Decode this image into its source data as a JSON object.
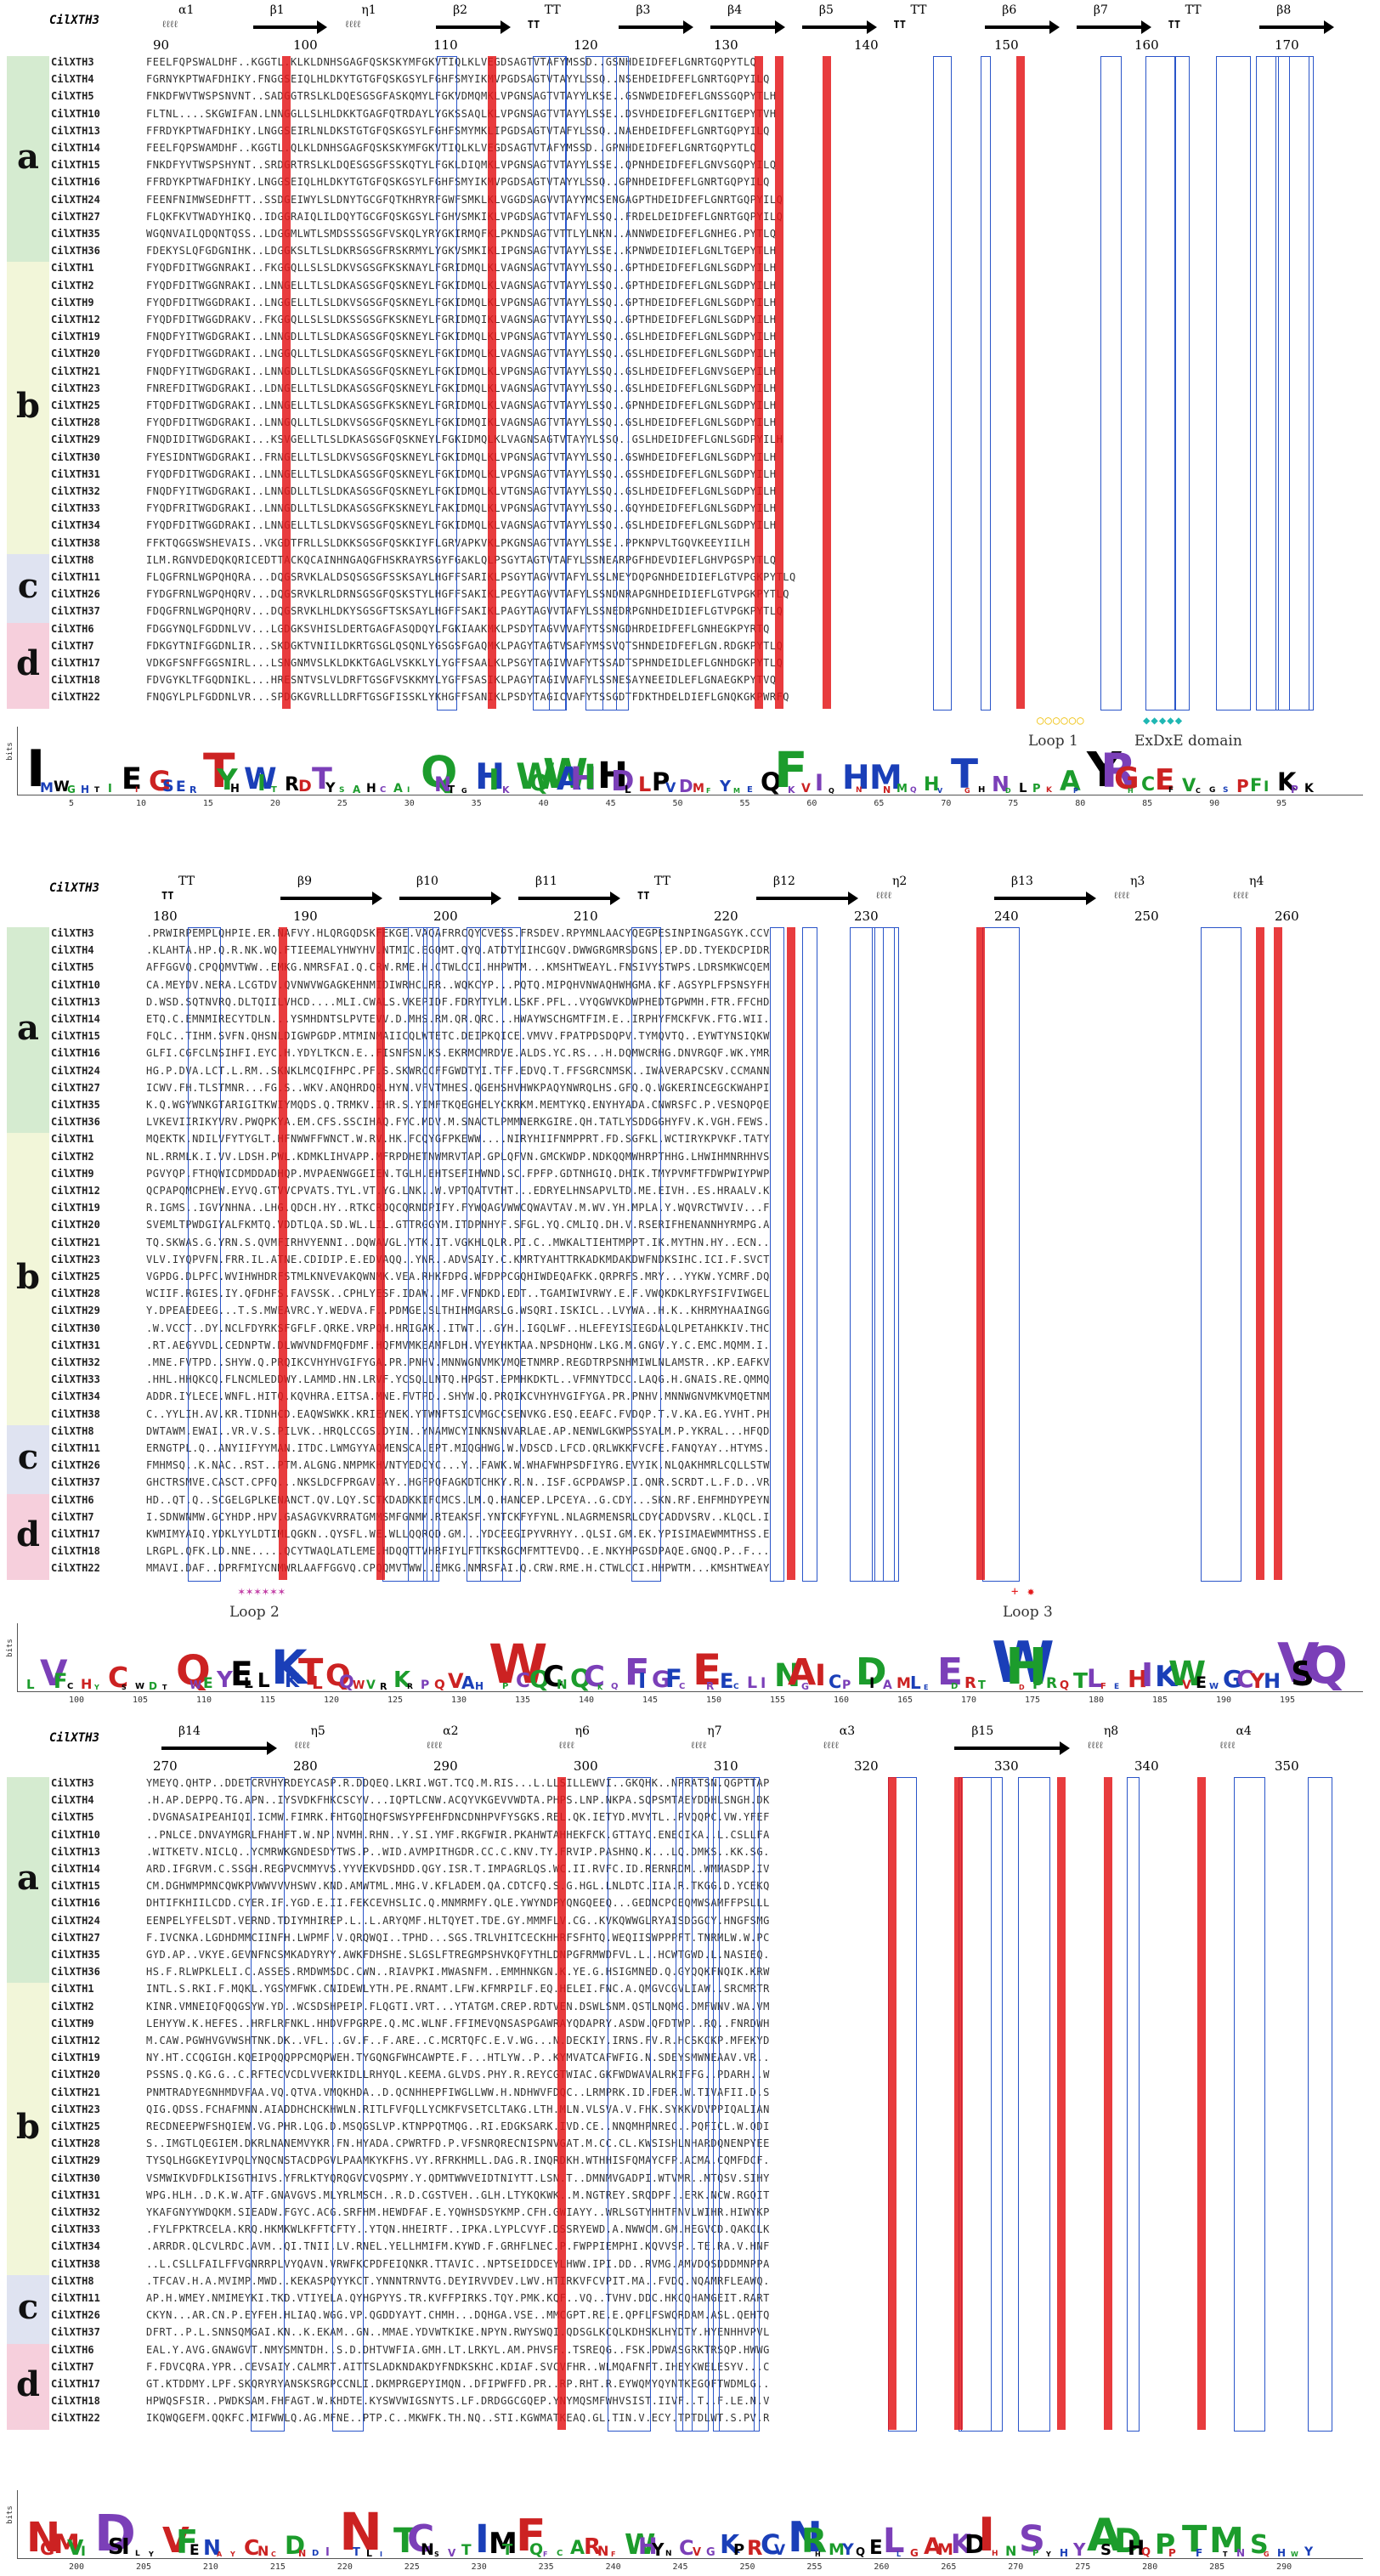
{
  "reference_label": "CilXTH3",
  "groups": [
    "a",
    "b",
    "c",
    "d"
  ],
  "panels": [
    {
      "id": "p1",
      "ss_labels": [
        {
          "t": "α1",
          "kind": "helix"
        },
        {
          "t": "β1",
          "kind": "strand"
        },
        {
          "t": "η1",
          "kind": "helix"
        },
        {
          "t": "β2",
          "kind": "strand"
        },
        {
          "t": "TT",
          "kind": "turn"
        },
        {
          "t": "β3",
          "kind": "strand"
        },
        {
          "t": "β4",
          "kind": "strand"
        },
        {
          "t": "β5",
          "kind": "strand"
        },
        {
          "t": "TT",
          "kind": "turn"
        },
        {
          "t": "β6",
          "kind": "strand"
        },
        {
          "t": "β7",
          "kind": "strand"
        },
        {
          "t": "TT",
          "kind": "turn"
        },
        {
          "t": "β8",
          "kind": "strand"
        }
      ],
      "ruler": [
        "90",
        "100",
        "110",
        "120",
        "130",
        "140",
        "150",
        "160",
        "170"
      ],
      "annotations": [
        {
          "label": "Loop 1",
          "mark": "○○○○○○",
          "color": "#f0c419"
        },
        {
          "label": "ExDxE domain",
          "mark": "◆◆◆◆◆",
          "color": "#1fb7b3"
        }
      ],
      "logo_ticks": [
        "5",
        "10",
        "15",
        "20",
        "25",
        "30",
        "35",
        "40",
        "45",
        "50",
        "55",
        "60",
        "65",
        "70",
        "75",
        "80",
        "85",
        "90",
        "95"
      ]
    },
    {
      "id": "p2",
      "ss_labels": [
        {
          "t": "TT",
          "kind": "turn"
        },
        {
          "t": "β9",
          "kind": "strand"
        },
        {
          "t": "β10",
          "kind": "strand"
        },
        {
          "t": "β11",
          "kind": "strand"
        },
        {
          "t": "TT",
          "kind": "turn"
        },
        {
          "t": "β12",
          "kind": "strand"
        },
        {
          "t": "η2",
          "kind": "helix"
        },
        {
          "t": "β13",
          "kind": "strand"
        },
        {
          "t": "η3",
          "kind": "helix"
        },
        {
          "t": "η4",
          "kind": "helix"
        }
      ],
      "ruler": [
        "180",
        "190",
        "200",
        "210",
        "220",
        "230",
        "240",
        "250",
        "260"
      ],
      "annotations": [
        {
          "label": "Loop 2",
          "mark": "✶✶✶✶✶✶",
          "color": "#c23fa6"
        },
        {
          "label": "Loop 3",
          "mark": "+ ✸",
          "color": "#e41a1c"
        }
      ],
      "logo_ticks": [
        "100",
        "105",
        "110",
        "115",
        "120",
        "125",
        "130",
        "135",
        "140",
        "145",
        "150",
        "155",
        "160",
        "165",
        "170",
        "175",
        "180",
        "185",
        "190",
        "195"
      ]
    },
    {
      "id": "p3",
      "ss_labels": [
        {
          "t": "β14",
          "kind": "strand"
        },
        {
          "t": "η5",
          "kind": "helix"
        },
        {
          "t": "α2",
          "kind": "helix"
        },
        {
          "t": "η6",
          "kind": "helix"
        },
        {
          "t": "η7",
          "kind": "helix"
        },
        {
          "t": "α3",
          "kind": "helix"
        },
        {
          "t": "β15",
          "kind": "strand"
        },
        {
          "t": "η8",
          "kind": "helix"
        },
        {
          "t": "α4",
          "kind": "helix"
        }
      ],
      "ruler": [
        "270",
        "280",
        "290",
        "300",
        "310",
        "320",
        "330",
        "340",
        "350"
      ],
      "annotations": [],
      "logo_ticks": [
        "200",
        "205",
        "210",
        "215",
        "220",
        "225",
        "230",
        "235",
        "240",
        "245",
        "250",
        "255",
        "260",
        "265",
        "270",
        "275",
        "280",
        "285",
        "290"
      ]
    }
  ],
  "group_members": {
    "a": [
      "CilXTH3",
      "CilXTH4",
      "CilXTH5",
      "CilXTH10",
      "CilXTH13",
      "CilXTH14",
      "CilXTH15",
      "CilXTH16",
      "CilXTH24",
      "CilXTH27",
      "CilXTH35",
      "CilXTH36"
    ],
    "b": [
      "CilXTH1",
      "CilXTH2",
      "CilXTH9",
      "CilXTH12",
      "CilXTH19",
      "CilXTH20",
      "CilXTH21",
      "CilXTH23",
      "CilXTH25",
      "CilXTH28",
      "CilXTH29",
      "CilXTH30",
      "CilXTH31",
      "CilXTH32",
      "CilXTH33",
      "CilXTH34",
      "CilXTH38"
    ],
    "c": [
      "CilXTH8",
      "CilXTH11",
      "CilXTH26",
      "CilXTH37"
    ],
    "d": [
      "CilXTH6",
      "CilXTH7",
      "CilXTH17",
      "CilXTH18",
      "CilXTH22"
    ]
  },
  "sequences": {
    "p1": {
      "CilXTH3": "FEELFQPSWALDHF..KGGTL.KLKLDNHSGAGFQSKSKYMFGKVTIQLKLVEGDSAGTVTAFYMSSD..GSNHDEIDFEFLGNRTGQPYTLQ",
      "CilXTH4": "FGRNYKPTWAFDHIKY.FNGGSEIQLHLDKYTGTGFQSKGSYLFGHFSMYIKMVPGDSAGTVTAYYLSSQ..NSEHDEIDFEFLGNRTGQPYILQ",
      "CilXTH5": "FNKDFWVTWSPSNVNT..SADGGTRSLKLDQESGSGFASKQMYLFGKVDMQMKLVPGNSAGTVTAYYLKSE..GSNWDEIDFEFLGNSSGQPYTLH",
      "CilXTH10": "FLTNL....SKGWIFAN.LNNGGLLSLHLDKKTGAGFQTRDAYLYGKSSAQLKLVPGNSAGTVTAYYLSSE..DSVHDEIDFEFLGNITGEPYTVH",
      "CilXTH13": "FFRDYKPTWAFDHIKY.LNGGSEIRLNLDKSTGTGFQSKGSYLFGHFSMYMKLIPGDSAGTVTAFYLSSQ..NAEHDEIDFEFLGNRTGQPYILQ",
      "CilXTH14": "FEELFQPSWAMDHF..KGGTL.QLKLDNHSGAGFQSKSKYMFGKVTIQLKLVEGDSAGTVTAFYMSSD..GPNHDEIDFEFLGNRTGQPYTLQ",
      "CilXTH15": "FNKDFYVTWSPSHYNT..SRDGRTRSLKLDQESGSGFSSKQTYLFGKLDIQMKLVPGNSAGTVTAYYLSSE..QPNHDEIDFEFLGNVSGQPYILQ",
      "CilXTH16": "FFRDYKPTWAFDHIKY.LNGGSEIQLHLDKYTGTGFQSKGSYLFGHFSMYIKMVPGDSAGTVTAYYLSSQ..GPNHDEIDFEFLGNRTGQPYILQ",
      "CilXTH24": "FEENFNIMWSEDHFTT..SSDGEIWYLSLDNYTGCGFQTKHRYRFGWFSMKLKLVGGDSAGVVTAYYMCSENGAGPTHDEIDFEFLGNRTGQPYILQ",
      "CilXTH27": "FLQKFKVTWADYHIKQ..IDGGRAIQLILDQYTGCGFQSKGSYLFGHVSMKIKLVPGDSAGTVTAFYLSSQ..FRDELDEIDFEFLGNRTGQPYILQ",
      "CilXTH35": "WGQNVAILQDQNTQSS..LDGGMLWTLSMDSSSGSGFVSKQLYRYGKIRMQFKLPKNDSAGTVTTLYLNKN..ANNWDEIDFEFLGNHEG.PYTLQ",
      "CilXTH36": "FDEKYSLQFGDGNIHK..LDGGKSLTLSLDKRSGSGFRSKRMYLYGKVSMKIKLIPGNSAGTVTAYYLSSE..KPNWDEIDIEFLGNLTGEPYTLH",
      "CilXTH1": "FYQDFDITWGGNRAKI..FKGGQLLSLSLDKVSGSGFKSKNAYLFGRIDMQLKLVAGNSAGTVTAYYLSSQ..GPTHDEIDFEFLGNLSGDPYILH",
      "CilXTH2": "FYQDFDITWGGNRAKI..LNNGELLTLSLDKASGSGFQSKNEYLFGKIDMQLKLVAGNSAGTVTAYYLSSQ..GPTHDEIDFEFLGNLSGDPYILH",
      "CilXTH9": "FYQDFDITWGGDRAKI..LNGGELLTLSLDKVSGSGFQSKNEYLFGKIDMQLKLVPGNSAGTVTAYYLSSQ..GPTHDEIDFEFLGNLSGDPYILH",
      "CilXTH12": "FYQDFDITWGGDRAKV..FKGGQLLSLSLDKSSGSGFKSKNEYLFGRIDMQIKLVAGNSAGTVTAYYLSSQ..GPTHDEIDFEFLGNLSGDPYILH",
      "CilXTH19": "FNQDFYITWGDGRAKI..LNNGDLLTLSLDKASGSGFQSKNEYLFGKIDMQLKLVPGNSAGTVTAYYLSSQ..GSLHDEIDFEFLGNLSGDPYILH",
      "CilXTH20": "FYQDFDITWGGDRAKI..LNGGQLLTLSLDKASGSGFQSKNEYLFGKIDMQLKLVAGNSAGTVTAYYLSSQ..GSLHDEIDFEFLGNLSGDPYILH",
      "CilXTH21": "FNQDFYITWGDGRAKI..LNNGDLLTLSLDKASGSGFQSKNEYLFGKIDMQLKLVPGNSAGTVTAYYLSSQ..GSLHDEIDFEFLGNVSGEPYILH",
      "CilXTH23": "FNREFDITWGDGRAKI..LDNGELLTLSLDKASGSGFQSKNEYLFGKIDMQLKLVAGNSAGTVTAYYLSSQ..GSLHDEIDFEFLGNLSGDPYILH",
      "CilXTH25": "FTQDFDITWGDGRAKI..LNNGELLTLSLDKASGSGFKSKNEYLFGRIDMQLKLVAGNSAGTVTAYYLSSQ..GPNHDEIDFEFLGNLSGDPYILH",
      "CilXTH28": "FYQDFDITWGDGRAKI..LNNGQLLTLSLDKVSGSGFQSKNEYLFGKIDMQIKLVAGNSAGTVTAYYLSSQ..GSLHDEIDFEFLGNLSGDPYILH",
      "CilXTH29": "FNQDIDITWGDGRAKI...KSVGELLTLSLDKASGSGFQSKNEYLFGKIDMQLKLVAGNSAGTVTAYYLSSQ..GSLHDEIDFEFLGNLSGDPYILH",
      "CilXTH30": "FYESIDNTWGDGRAKI..FRNGELLTLSLDKVSGSGFQSKNEYLFGKIDMQLKLVPGNSAGTVTAYYLSSQ..GSWHDEIDFEFLGNLSGDPYILH",
      "CilXTH31": "FYQDFDITWGDGRAKI..LNNGELLTLSLDKASGSGFQSKNEYLFGKIDMQLKLVPGNSAGTVTAYYLSSQ..GSSHDEIDFEFLGNLSGDPYILH",
      "CilXTH32": "FNQDFYITWGDGRAKI..LNNGDLLTLSLDKASGSGFQSKNEYLFGKIDMQLKLVTGNSAGTVTAYYLSSQ..GSLHDEIDFEFLGNLSGDPYILH",
      "CilXTH33": "FYQDFRITWGDGRAKI..LNNGDLLTLSLDKASGSGFKSKNEYLFAKIDMQLKLVPGNSAGTVTAYYLSSQ..GQYHDEIDFEFLGNLSGDPYILH",
      "CilXTH34": "FYQDFDITWGGDRAKI..LNNGELLTLSLDKVSGSGFQSKNEYLFGKIDMQLKLVAGNSAGTVTAYYLSSQ..GSLHDEIDFEFLGNLSGDPYILH",
      "CilXTH38": "FFKTQGGSWSHEVAIS..VKGDTFRLLSLDKKSGSGFQSKKIYFLGRVAPKVKLPKGNSAGTVTAYYLSSE..PPKNPVLTGQVKEEYIILH",
      "CilXTH8": "ILM.RGNVDEDQKQRICEDTTACKQCAINHNGAQGFHSKRAYRSGYFGAKLQLPSGYTAGTVTAFYLSSNEARPGFHDEVDIEFLGHVPGSPYTLQ",
      "CilXTH11": "FLQGFRNLWGPQHQRA...DQGSRVKLALDSQSGSGFSSKSAYLHGFFSARIKLPSGYTAGVVTAFYLSSLNEYDQPGNHDEIDIEFLGTVPGKPYTLQ",
      "CilXTH26": "FYDGFRNLWGPQHQRV...DQGSRVKLRLDRNSGSGFQSKSTYLHGFFSAKIKLPEGYTAGVVTAFYLSSNDNRAPGNHDEIDIEFLGTVPGKPYTLQ",
      "CilXTH37": "FDQGFRNLWGPQHQRV...DQGSRVKLHLDKYSGSGFTSKSAYLHGFFSAKIKLPAGYTAGVVTAFYLSSNEDRPGNHDEIDIEFLGTVPGKPYTLQ",
      "CilXTH6": "FDGGYNQLFGDDNLVV...LGDGKSVHISLDERTGAGFASQDQYLFGKIAAKMKLPSDYTAGVVVAFYTSSNGDHRDEIDFEFLGNHEGKPYRTQ",
      "CilXTH7": "FDKGYTNIFGGDNLIR...SKDGKTVNIILDKRTGSGLQSQNLYGSGSFGAQMKLPAGYTAGTVSAFYMSSVQTSHNDEIDFEFLGN.RDGKPYTLQ",
      "CilXTH17": "VDKGFSNFFGGSNIRL...LSNGNMVSLKLDKKTGAGLVSKKLYLYGFFSAALKLPSGYTAGIVVAFYTSSADTSPHNDEIDLEFLGNHDGKPYTLQ",
      "CilXTH18": "FDVGYKLTFGQDNIKL...HRESNTVSLVLDRFTGSGFVSKKMYLYGFFSASIKLPAGYTAGIVVAFYLSSNESAYNEEIDLEFLGNAEGKPYTVQ",
      "CilXTH22": "FNQGYLPLFGDDNLVR...SPDGKGVRLLLDRFTGSGFISSKLYKHGFFSANIKLPSDYTAGICVAFYTSSGDTFDKTHDELDIEFLGNQKGKPWRFQ"
    }
  },
  "logo_label": "bits"
}
